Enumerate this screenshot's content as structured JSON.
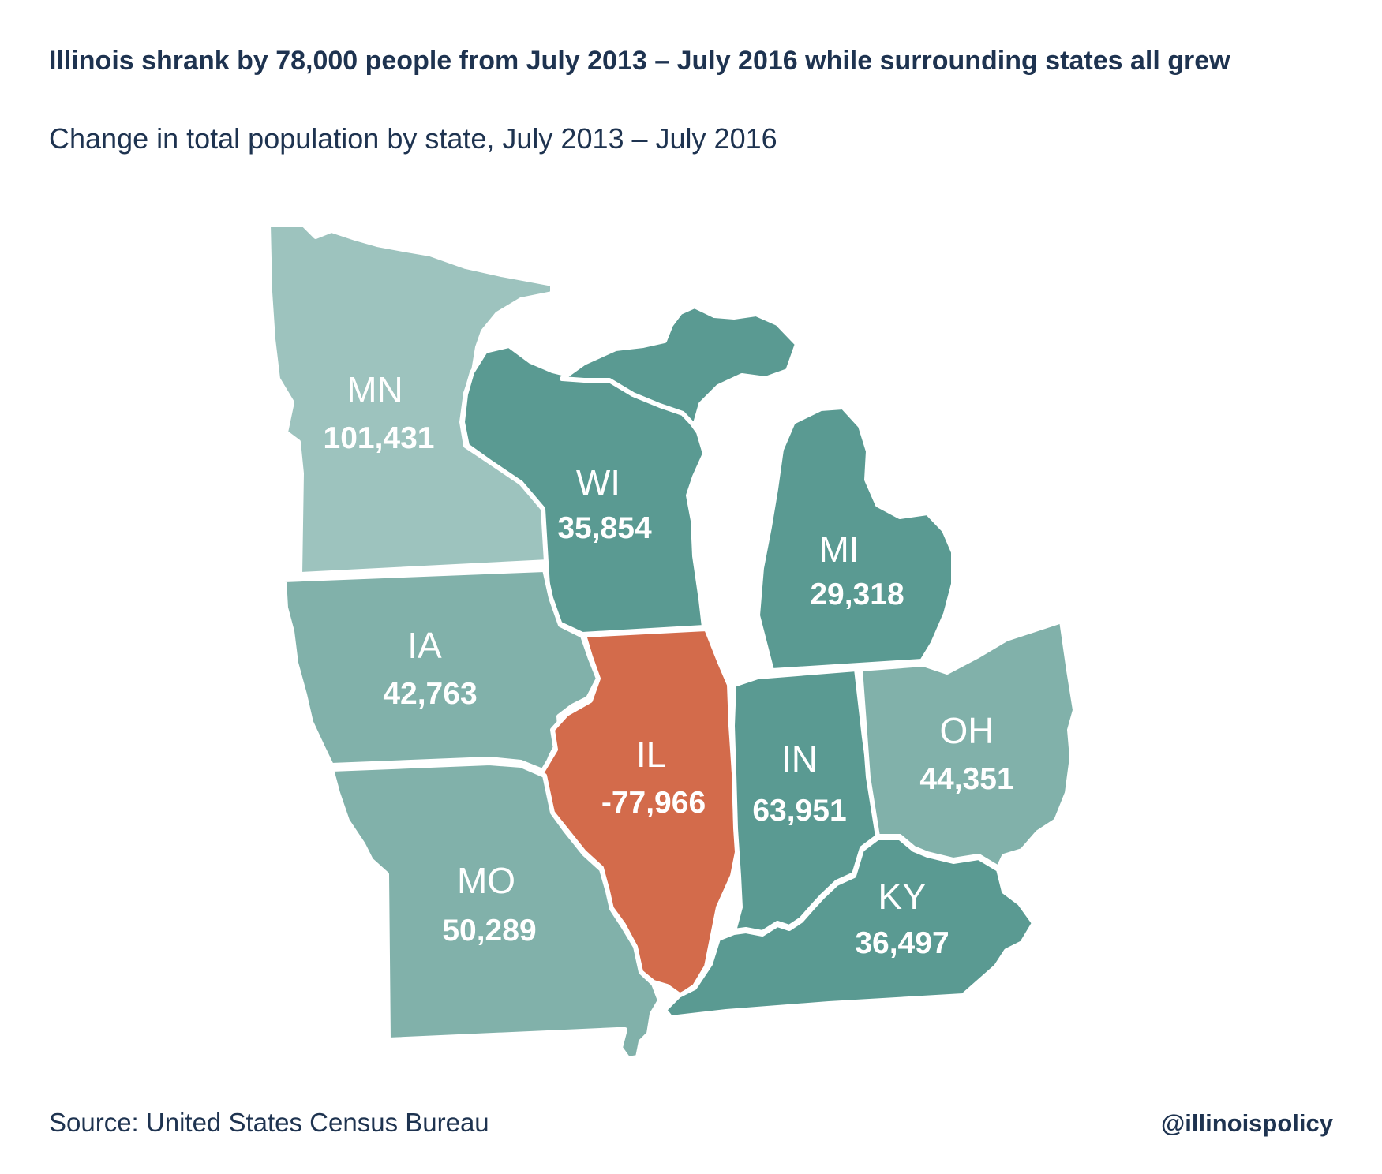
{
  "title": "Illinois shrank by 78,000 people from July 2013 – July 2016 while surrounding states all grew",
  "subtitle": "Change in total population by state, July 2013 – July 2016",
  "source": "Source: United States Census Bureau",
  "handle": "@illinoispolicy",
  "colors": {
    "decline": "#d36b4b",
    "growth_dark": "#5a9a92",
    "growth_mid": "#81b1aa",
    "growth_light": "#9dc3be",
    "text_dark": "#1e3350"
  },
  "states": {
    "MN": {
      "abbr": "MN",
      "change": "101,431"
    },
    "WI": {
      "abbr": "WI",
      "change": "35,854"
    },
    "MI": {
      "abbr": "MI",
      "change": "29,318"
    },
    "IA": {
      "abbr": "IA",
      "change": "42,763"
    },
    "IL": {
      "abbr": "IL",
      "change": "-77,966"
    },
    "IN": {
      "abbr": "IN",
      "change": "63,951"
    },
    "OH": {
      "abbr": "OH",
      "change": "44,351"
    },
    "MO": {
      "abbr": "MO",
      "change": "50,289"
    },
    "KY": {
      "abbr": "KY",
      "change": "36,497"
    }
  }
}
